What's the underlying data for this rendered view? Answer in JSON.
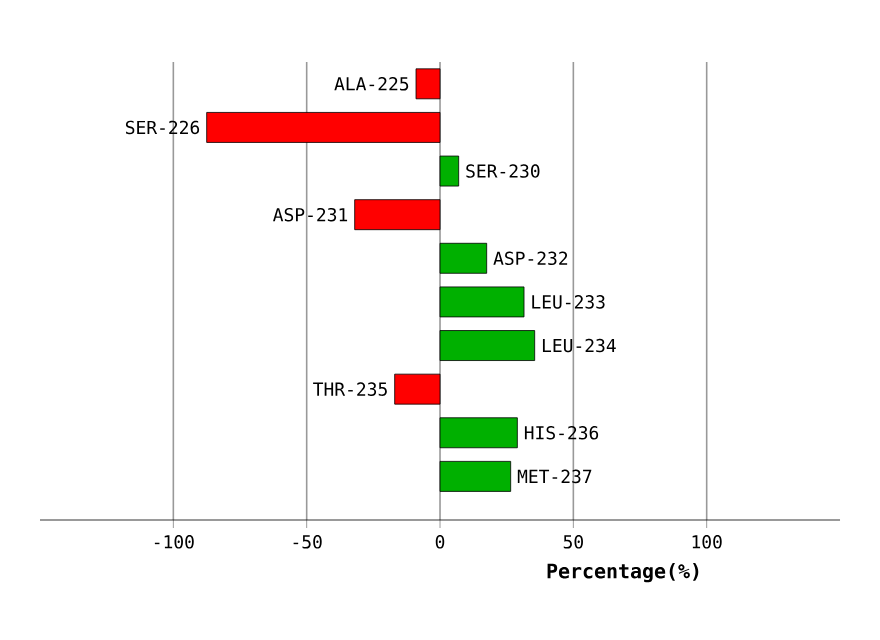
{
  "chart_data": {
    "type": "bar",
    "orientation": "horizontal",
    "xlabel": "Percentage(%)",
    "categories": [
      "ALA-225",
      "SER-226",
      "SER-230",
      "ASP-231",
      "ASP-232",
      "LEU-233",
      "LEU-234",
      "THR-235",
      "HIS-236",
      "MET-237"
    ],
    "values": [
      -9,
      -87.5,
      7,
      -32,
      17.5,
      31.5,
      35.5,
      -17,
      29,
      26.5
    ],
    "colors": [
      "#ff0000",
      "#ff0000",
      "#00b000",
      "#ff0000",
      "#00b000",
      "#00b000",
      "#00b000",
      "#ff0000",
      "#00b000",
      "#00b000"
    ],
    "xlim": [
      -150,
      150
    ],
    "xticks": [
      -100,
      -50,
      0,
      50,
      100
    ],
    "grid": "x"
  }
}
